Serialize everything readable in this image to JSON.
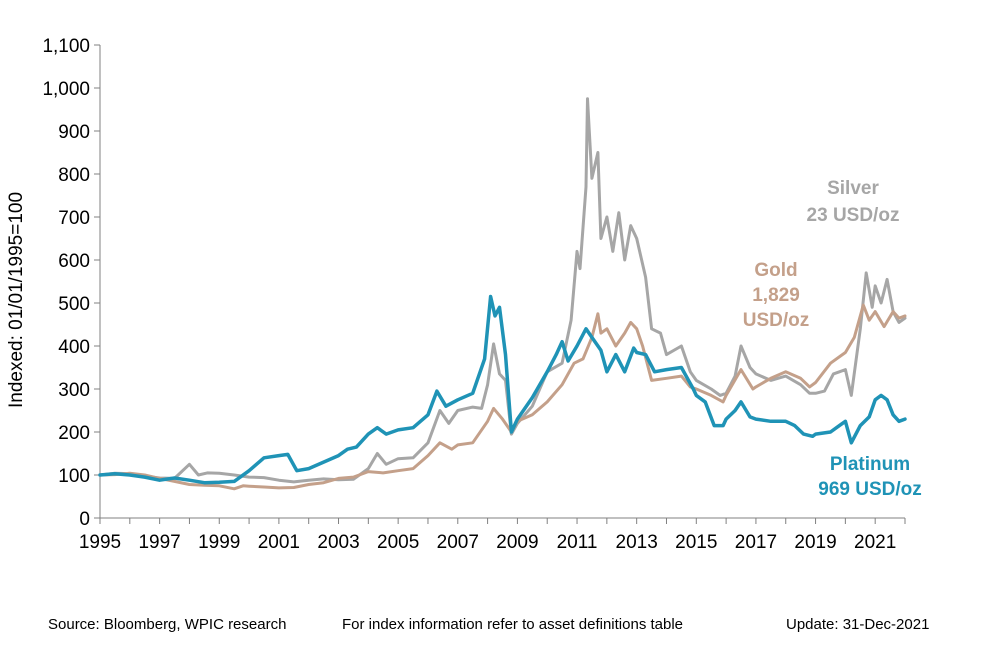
{
  "chart_data": {
    "type": "line",
    "ylabel": "Indexed: 01/01/1995=100",
    "xlabel": "",
    "ylim": [
      0,
      1100
    ],
    "xlim": [
      1995,
      2022
    ],
    "y_ticks": [
      0,
      100,
      200,
      300,
      400,
      500,
      600,
      700,
      800,
      900,
      1000,
      1100
    ],
    "y_tick_labels": [
      "0",
      "100",
      "200",
      "300",
      "400",
      "500",
      "600",
      "700",
      "800",
      "900",
      "1,000",
      "1,100"
    ],
    "x_ticks": [
      1995,
      1997,
      1999,
      2001,
      2003,
      2005,
      2007,
      2009,
      2011,
      2013,
      2015,
      2017,
      2019,
      2021
    ],
    "x_tick_labels": [
      "1995",
      "1997",
      "1999",
      "2001",
      "2003",
      "2005",
      "2007",
      "2009",
      "2011",
      "2013",
      "2015",
      "2017",
      "2019",
      "2021"
    ],
    "grid": false,
    "series": [
      {
        "name": "Silver",
        "label_lines": [
          "Silver",
          "23 USD/oz"
        ],
        "color": "#a6a6a6",
        "points": [
          [
            1995.0,
            100
          ],
          [
            1995.5,
            104
          ],
          [
            1996.0,
            103
          ],
          [
            1996.5,
            97
          ],
          [
            1997.0,
            93
          ],
          [
            1997.5,
            92
          ],
          [
            1998.0,
            125
          ],
          [
            1998.3,
            100
          ],
          [
            1998.6,
            105
          ],
          [
            1999.0,
            104
          ],
          [
            1999.5,
            100
          ],
          [
            2000.0,
            95
          ],
          [
            2000.5,
            94
          ],
          [
            2001.0,
            88
          ],
          [
            2001.5,
            84
          ],
          [
            2002.0,
            88
          ],
          [
            2002.5,
            91
          ],
          [
            2003.0,
            89
          ],
          [
            2003.5,
            90
          ],
          [
            2004.0,
            115
          ],
          [
            2004.3,
            150
          ],
          [
            2004.6,
            125
          ],
          [
            2005.0,
            138
          ],
          [
            2005.5,
            140
          ],
          [
            2006.0,
            175
          ],
          [
            2006.4,
            250
          ],
          [
            2006.7,
            220
          ],
          [
            2007.0,
            250
          ],
          [
            2007.5,
            258
          ],
          [
            2007.8,
            255
          ],
          [
            2008.0,
            310
          ],
          [
            2008.2,
            405
          ],
          [
            2008.4,
            335
          ],
          [
            2008.6,
            320
          ],
          [
            2008.8,
            195
          ],
          [
            2009.0,
            220
          ],
          [
            2009.5,
            260
          ],
          [
            2010.0,
            340
          ],
          [
            2010.5,
            360
          ],
          [
            2010.8,
            460
          ],
          [
            2011.0,
            620
          ],
          [
            2011.1,
            580
          ],
          [
            2011.3,
            770
          ],
          [
            2011.35,
            975
          ],
          [
            2011.5,
            790
          ],
          [
            2011.7,
            850
          ],
          [
            2011.8,
            650
          ],
          [
            2012.0,
            700
          ],
          [
            2012.2,
            620
          ],
          [
            2012.4,
            710
          ],
          [
            2012.6,
            600
          ],
          [
            2012.8,
            680
          ],
          [
            2013.0,
            650
          ],
          [
            2013.3,
            560
          ],
          [
            2013.5,
            440
          ],
          [
            2013.8,
            430
          ],
          [
            2014.0,
            380
          ],
          [
            2014.5,
            400
          ],
          [
            2014.8,
            340
          ],
          [
            2015.0,
            320
          ],
          [
            2015.5,
            300
          ],
          [
            2015.8,
            285
          ],
          [
            2016.0,
            290
          ],
          [
            2016.3,
            330
          ],
          [
            2016.5,
            400
          ],
          [
            2016.8,
            350
          ],
          [
            2017.0,
            335
          ],
          [
            2017.5,
            320
          ],
          [
            2018.0,
            330
          ],
          [
            2018.5,
            310
          ],
          [
            2018.8,
            290
          ],
          [
            2019.0,
            290
          ],
          [
            2019.3,
            295
          ],
          [
            2019.6,
            335
          ],
          [
            2019.8,
            340
          ],
          [
            2020.0,
            345
          ],
          [
            2020.2,
            285
          ],
          [
            2020.5,
            440
          ],
          [
            2020.7,
            570
          ],
          [
            2020.9,
            490
          ],
          [
            2021.0,
            540
          ],
          [
            2021.2,
            500
          ],
          [
            2021.4,
            555
          ],
          [
            2021.6,
            480
          ],
          [
            2021.8,
            455
          ],
          [
            2022.0,
            465
          ]
        ]
      },
      {
        "name": "Gold",
        "label_lines": [
          "Gold",
          "1,829",
          "USD/oz"
        ],
        "color": "#c4a08a",
        "points": [
          [
            1995.0,
            100
          ],
          [
            1995.5,
            101
          ],
          [
            1996.0,
            104
          ],
          [
            1996.5,
            100
          ],
          [
            1997.0,
            92
          ],
          [
            1997.5,
            85
          ],
          [
            1998.0,
            78
          ],
          [
            1998.5,
            76
          ],
          [
            1999.0,
            75
          ],
          [
            1999.5,
            68
          ],
          [
            1999.8,
            75
          ],
          [
            2000.0,
            74
          ],
          [
            2000.5,
            72
          ],
          [
            2001.0,
            70
          ],
          [
            2001.5,
            71
          ],
          [
            2002.0,
            78
          ],
          [
            2002.5,
            82
          ],
          [
            2003.0,
            92
          ],
          [
            2003.5,
            95
          ],
          [
            2004.0,
            108
          ],
          [
            2004.5,
            105
          ],
          [
            2005.0,
            110
          ],
          [
            2005.5,
            115
          ],
          [
            2006.0,
            145
          ],
          [
            2006.4,
            175
          ],
          [
            2006.8,
            160
          ],
          [
            2007.0,
            170
          ],
          [
            2007.5,
            175
          ],
          [
            2008.0,
            225
          ],
          [
            2008.2,
            255
          ],
          [
            2008.5,
            230
          ],
          [
            2008.8,
            200
          ],
          [
            2009.0,
            225
          ],
          [
            2009.5,
            240
          ],
          [
            2010.0,
            270
          ],
          [
            2010.5,
            310
          ],
          [
            2010.9,
            360
          ],
          [
            2011.2,
            370
          ],
          [
            2011.5,
            420
          ],
          [
            2011.7,
            475
          ],
          [
            2011.8,
            430
          ],
          [
            2012.0,
            440
          ],
          [
            2012.3,
            400
          ],
          [
            2012.6,
            430
          ],
          [
            2012.8,
            455
          ],
          [
            2013.0,
            440
          ],
          [
            2013.2,
            400
          ],
          [
            2013.5,
            320
          ],
          [
            2014.0,
            325
          ],
          [
            2014.5,
            330
          ],
          [
            2014.8,
            305
          ],
          [
            2015.0,
            300
          ],
          [
            2015.5,
            285
          ],
          [
            2015.9,
            270
          ],
          [
            2016.0,
            285
          ],
          [
            2016.5,
            345
          ],
          [
            2016.9,
            300
          ],
          [
            2017.0,
            305
          ],
          [
            2017.5,
            325
          ],
          [
            2018.0,
            340
          ],
          [
            2018.5,
            325
          ],
          [
            2018.8,
            305
          ],
          [
            2019.0,
            315
          ],
          [
            2019.5,
            360
          ],
          [
            2019.9,
            380
          ],
          [
            2020.0,
            385
          ],
          [
            2020.3,
            420
          ],
          [
            2020.6,
            495
          ],
          [
            2020.8,
            460
          ],
          [
            2021.0,
            480
          ],
          [
            2021.3,
            445
          ],
          [
            2021.6,
            480
          ],
          [
            2021.8,
            465
          ],
          [
            2022.0,
            470
          ]
        ]
      },
      {
        "name": "Platinum",
        "label_lines": [
          "Platinum",
          "969 USD/oz"
        ],
        "color": "#1f93b6",
        "points": [
          [
            1995.0,
            100
          ],
          [
            1995.5,
            103
          ],
          [
            1996.0,
            100
          ],
          [
            1996.5,
            95
          ],
          [
            1997.0,
            88
          ],
          [
            1997.5,
            93
          ],
          [
            1998.0,
            88
          ],
          [
            1998.5,
            82
          ],
          [
            1999.0,
            83
          ],
          [
            1999.5,
            85
          ],
          [
            2000.0,
            110
          ],
          [
            2000.5,
            140
          ],
          [
            2001.0,
            145
          ],
          [
            2001.3,
            148
          ],
          [
            2001.6,
            110
          ],
          [
            2002.0,
            115
          ],
          [
            2002.5,
            130
          ],
          [
            2003.0,
            145
          ],
          [
            2003.3,
            160
          ],
          [
            2003.6,
            165
          ],
          [
            2004.0,
            195
          ],
          [
            2004.3,
            210
          ],
          [
            2004.6,
            195
          ],
          [
            2005.0,
            205
          ],
          [
            2005.5,
            210
          ],
          [
            2006.0,
            240
          ],
          [
            2006.3,
            295
          ],
          [
            2006.6,
            260
          ],
          [
            2007.0,
            275
          ],
          [
            2007.5,
            290
          ],
          [
            2007.9,
            370
          ],
          [
            2008.1,
            515
          ],
          [
            2008.25,
            470
          ],
          [
            2008.4,
            490
          ],
          [
            2008.6,
            380
          ],
          [
            2008.8,
            200
          ],
          [
            2009.0,
            230
          ],
          [
            2009.5,
            280
          ],
          [
            2010.0,
            340
          ],
          [
            2010.3,
            380
          ],
          [
            2010.5,
            410
          ],
          [
            2010.7,
            365
          ],
          [
            2011.0,
            400
          ],
          [
            2011.3,
            440
          ],
          [
            2011.5,
            420
          ],
          [
            2011.8,
            390
          ],
          [
            2012.0,
            340
          ],
          [
            2012.3,
            380
          ],
          [
            2012.6,
            340
          ],
          [
            2012.9,
            395
          ],
          [
            2013.0,
            385
          ],
          [
            2013.3,
            380
          ],
          [
            2013.6,
            340
          ],
          [
            2014.0,
            345
          ],
          [
            2014.5,
            350
          ],
          [
            2014.9,
            300
          ],
          [
            2015.0,
            285
          ],
          [
            2015.3,
            270
          ],
          [
            2015.6,
            215
          ],
          [
            2015.9,
            215
          ],
          [
            2016.0,
            230
          ],
          [
            2016.3,
            250
          ],
          [
            2016.5,
            270
          ],
          [
            2016.8,
            235
          ],
          [
            2017.0,
            230
          ],
          [
            2017.5,
            225
          ],
          [
            2018.0,
            225
          ],
          [
            2018.3,
            215
          ],
          [
            2018.6,
            195
          ],
          [
            2018.9,
            190
          ],
          [
            2019.0,
            195
          ],
          [
            2019.5,
            200
          ],
          [
            2019.8,
            215
          ],
          [
            2020.0,
            225
          ],
          [
            2020.2,
            175
          ],
          [
            2020.5,
            215
          ],
          [
            2020.8,
            235
          ],
          [
            2021.0,
            275
          ],
          [
            2021.2,
            285
          ],
          [
            2021.4,
            275
          ],
          [
            2021.6,
            240
          ],
          [
            2021.8,
            225
          ],
          [
            2022.0,
            230
          ]
        ]
      }
    ]
  },
  "footer": {
    "source": "Source: Bloomberg, WPIC research",
    "note": "For index information refer to asset definitions table",
    "update": "Update: 31-Dec-2021"
  }
}
